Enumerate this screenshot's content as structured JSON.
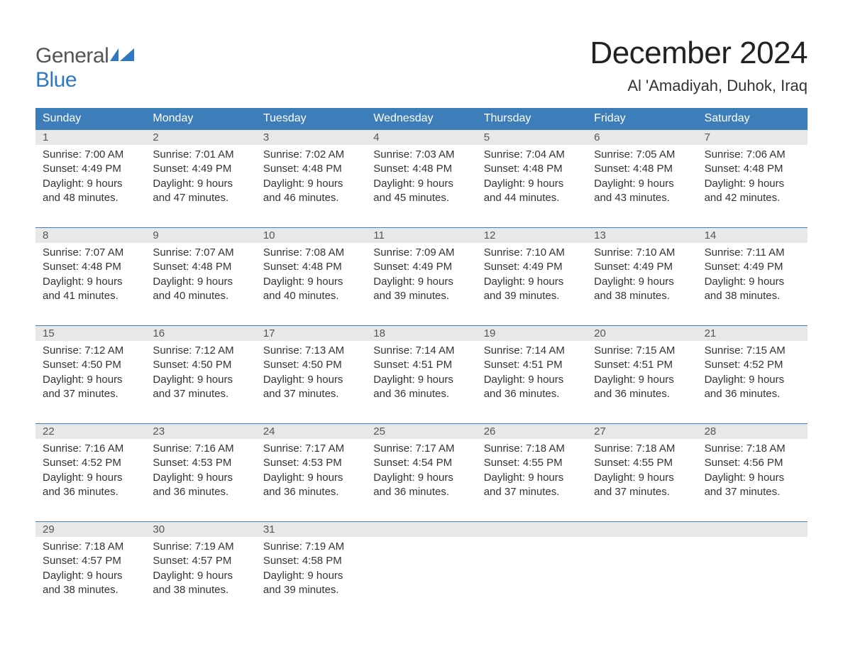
{
  "logo": {
    "text_top": "General",
    "text_bottom": "Blue",
    "accent_color": "#2f78bf",
    "muted_color": "#555555"
  },
  "page": {
    "title": "December 2024",
    "location": "Al 'Amadiyah, Duhok, Iraq",
    "title_fontsize": 44,
    "location_fontsize": 22
  },
  "colors": {
    "header_bg": "#3d7db9",
    "header_text": "#ffffff",
    "day_number_bg": "#e8e8e8",
    "day_number_text": "#555555",
    "body_text": "#333333",
    "background": "#ffffff",
    "row_divider": "#3d7db9"
  },
  "day_headers": [
    "Sunday",
    "Monday",
    "Tuesday",
    "Wednesday",
    "Thursday",
    "Friday",
    "Saturday"
  ],
  "weeks": [
    [
      {
        "day": "1",
        "sunrise": "Sunrise: 7:00 AM",
        "sunset": "Sunset: 4:49 PM",
        "dl1": "Daylight: 9 hours",
        "dl2": "and 48 minutes."
      },
      {
        "day": "2",
        "sunrise": "Sunrise: 7:01 AM",
        "sunset": "Sunset: 4:49 PM",
        "dl1": "Daylight: 9 hours",
        "dl2": "and 47 minutes."
      },
      {
        "day": "3",
        "sunrise": "Sunrise: 7:02 AM",
        "sunset": "Sunset: 4:48 PM",
        "dl1": "Daylight: 9 hours",
        "dl2": "and 46 minutes."
      },
      {
        "day": "4",
        "sunrise": "Sunrise: 7:03 AM",
        "sunset": "Sunset: 4:48 PM",
        "dl1": "Daylight: 9 hours",
        "dl2": "and 45 minutes."
      },
      {
        "day": "5",
        "sunrise": "Sunrise: 7:04 AM",
        "sunset": "Sunset: 4:48 PM",
        "dl1": "Daylight: 9 hours",
        "dl2": "and 44 minutes."
      },
      {
        "day": "6",
        "sunrise": "Sunrise: 7:05 AM",
        "sunset": "Sunset: 4:48 PM",
        "dl1": "Daylight: 9 hours",
        "dl2": "and 43 minutes."
      },
      {
        "day": "7",
        "sunrise": "Sunrise: 7:06 AM",
        "sunset": "Sunset: 4:48 PM",
        "dl1": "Daylight: 9 hours",
        "dl2": "and 42 minutes."
      }
    ],
    [
      {
        "day": "8",
        "sunrise": "Sunrise: 7:07 AM",
        "sunset": "Sunset: 4:48 PM",
        "dl1": "Daylight: 9 hours",
        "dl2": "and 41 minutes."
      },
      {
        "day": "9",
        "sunrise": "Sunrise: 7:07 AM",
        "sunset": "Sunset: 4:48 PM",
        "dl1": "Daylight: 9 hours",
        "dl2": "and 40 minutes."
      },
      {
        "day": "10",
        "sunrise": "Sunrise: 7:08 AM",
        "sunset": "Sunset: 4:48 PM",
        "dl1": "Daylight: 9 hours",
        "dl2": "and 40 minutes."
      },
      {
        "day": "11",
        "sunrise": "Sunrise: 7:09 AM",
        "sunset": "Sunset: 4:49 PM",
        "dl1": "Daylight: 9 hours",
        "dl2": "and 39 minutes."
      },
      {
        "day": "12",
        "sunrise": "Sunrise: 7:10 AM",
        "sunset": "Sunset: 4:49 PM",
        "dl1": "Daylight: 9 hours",
        "dl2": "and 39 minutes."
      },
      {
        "day": "13",
        "sunrise": "Sunrise: 7:10 AM",
        "sunset": "Sunset: 4:49 PM",
        "dl1": "Daylight: 9 hours",
        "dl2": "and 38 minutes."
      },
      {
        "day": "14",
        "sunrise": "Sunrise: 7:11 AM",
        "sunset": "Sunset: 4:49 PM",
        "dl1": "Daylight: 9 hours",
        "dl2": "and 38 minutes."
      }
    ],
    [
      {
        "day": "15",
        "sunrise": "Sunrise: 7:12 AM",
        "sunset": "Sunset: 4:50 PM",
        "dl1": "Daylight: 9 hours",
        "dl2": "and 37 minutes."
      },
      {
        "day": "16",
        "sunrise": "Sunrise: 7:12 AM",
        "sunset": "Sunset: 4:50 PM",
        "dl1": "Daylight: 9 hours",
        "dl2": "and 37 minutes."
      },
      {
        "day": "17",
        "sunrise": "Sunrise: 7:13 AM",
        "sunset": "Sunset: 4:50 PM",
        "dl1": "Daylight: 9 hours",
        "dl2": "and 37 minutes."
      },
      {
        "day": "18",
        "sunrise": "Sunrise: 7:14 AM",
        "sunset": "Sunset: 4:51 PM",
        "dl1": "Daylight: 9 hours",
        "dl2": "and 36 minutes."
      },
      {
        "day": "19",
        "sunrise": "Sunrise: 7:14 AM",
        "sunset": "Sunset: 4:51 PM",
        "dl1": "Daylight: 9 hours",
        "dl2": "and 36 minutes."
      },
      {
        "day": "20",
        "sunrise": "Sunrise: 7:15 AM",
        "sunset": "Sunset: 4:51 PM",
        "dl1": "Daylight: 9 hours",
        "dl2": "and 36 minutes."
      },
      {
        "day": "21",
        "sunrise": "Sunrise: 7:15 AM",
        "sunset": "Sunset: 4:52 PM",
        "dl1": "Daylight: 9 hours",
        "dl2": "and 36 minutes."
      }
    ],
    [
      {
        "day": "22",
        "sunrise": "Sunrise: 7:16 AM",
        "sunset": "Sunset: 4:52 PM",
        "dl1": "Daylight: 9 hours",
        "dl2": "and 36 minutes."
      },
      {
        "day": "23",
        "sunrise": "Sunrise: 7:16 AM",
        "sunset": "Sunset: 4:53 PM",
        "dl1": "Daylight: 9 hours",
        "dl2": "and 36 minutes."
      },
      {
        "day": "24",
        "sunrise": "Sunrise: 7:17 AM",
        "sunset": "Sunset: 4:53 PM",
        "dl1": "Daylight: 9 hours",
        "dl2": "and 36 minutes."
      },
      {
        "day": "25",
        "sunrise": "Sunrise: 7:17 AM",
        "sunset": "Sunset: 4:54 PM",
        "dl1": "Daylight: 9 hours",
        "dl2": "and 36 minutes."
      },
      {
        "day": "26",
        "sunrise": "Sunrise: 7:18 AM",
        "sunset": "Sunset: 4:55 PM",
        "dl1": "Daylight: 9 hours",
        "dl2": "and 37 minutes."
      },
      {
        "day": "27",
        "sunrise": "Sunrise: 7:18 AM",
        "sunset": "Sunset: 4:55 PM",
        "dl1": "Daylight: 9 hours",
        "dl2": "and 37 minutes."
      },
      {
        "day": "28",
        "sunrise": "Sunrise: 7:18 AM",
        "sunset": "Sunset: 4:56 PM",
        "dl1": "Daylight: 9 hours",
        "dl2": "and 37 minutes."
      }
    ],
    [
      {
        "day": "29",
        "sunrise": "Sunrise: 7:18 AM",
        "sunset": "Sunset: 4:57 PM",
        "dl1": "Daylight: 9 hours",
        "dl2": "and 38 minutes."
      },
      {
        "day": "30",
        "sunrise": "Sunrise: 7:19 AM",
        "sunset": "Sunset: 4:57 PM",
        "dl1": "Daylight: 9 hours",
        "dl2": "and 38 minutes."
      },
      {
        "day": "31",
        "sunrise": "Sunrise: 7:19 AM",
        "sunset": "Sunset: 4:58 PM",
        "dl1": "Daylight: 9 hours",
        "dl2": "and 39 minutes."
      },
      {
        "empty": true
      },
      {
        "empty": true
      },
      {
        "empty": true
      },
      {
        "empty": true
      }
    ]
  ]
}
